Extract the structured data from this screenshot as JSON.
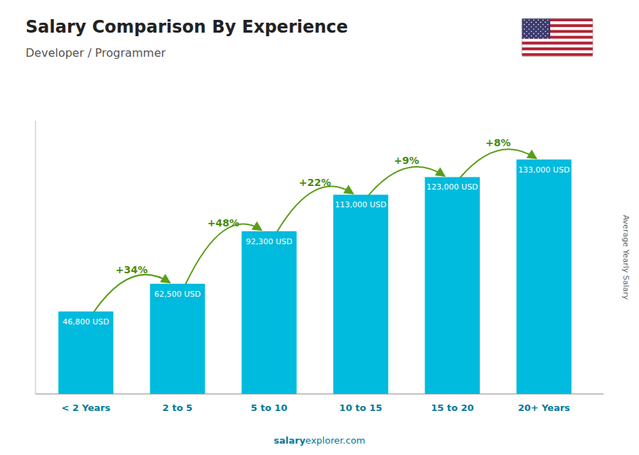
{
  "chart_data": {
    "type": "bar",
    "title": "Salary Comparison By Experience",
    "subtitle": "Developer / Programmer",
    "categories": [
      "< 2 Years",
      "2 to 5",
      "5 to 10",
      "10 to 15",
      "15 to 20",
      "20+ Years"
    ],
    "values": [
      46800,
      62500,
      92300,
      113000,
      123000,
      133000
    ],
    "value_labels": [
      "46,800 USD",
      "62,500 USD",
      "92,300 USD",
      "113,000 USD",
      "123,000 USD",
      "133,000 USD"
    ],
    "data_labels": true,
    "color": "#00bbdd",
    "y_label": "Average Yearly Salary",
    "ylim": [
      0,
      155000
    ],
    "grid": false,
    "tick_labels": "x",
    "annotations": [
      {
        "from": 0,
        "to": 1,
        "text": "+34%"
      },
      {
        "from": 1,
        "to": 2,
        "text": "+48%"
      },
      {
        "from": 2,
        "to": 3,
        "text": "+22%"
      },
      {
        "from": 3,
        "to": 4,
        "text": "+9%"
      },
      {
        "from": 4,
        "to": 5,
        "text": "+8%"
      }
    ],
    "footer": [
      "salary",
      "explorer.com"
    ]
  }
}
